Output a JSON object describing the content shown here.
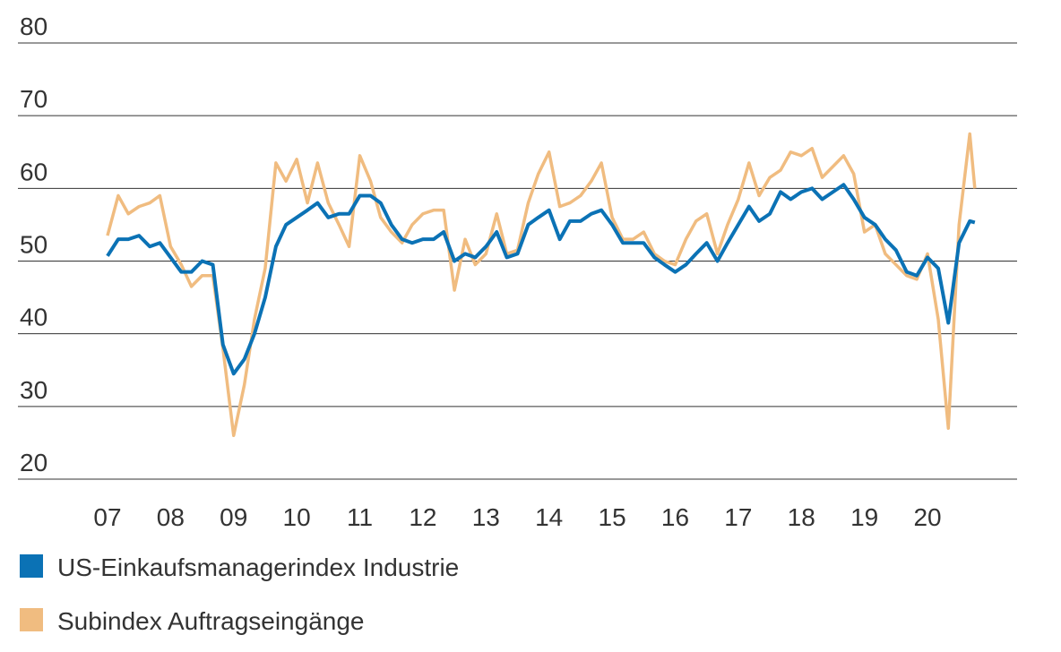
{
  "chart_data": {
    "type": "line",
    "x": [
      2007,
      2007.17,
      2007.33,
      2007.5,
      2007.67,
      2007.83,
      2008,
      2008.17,
      2008.33,
      2008.5,
      2008.67,
      2008.83,
      2009,
      2009.17,
      2009.33,
      2009.5,
      2009.67,
      2009.83,
      2010,
      2010.17,
      2010.33,
      2010.5,
      2010.67,
      2010.83,
      2011,
      2011.17,
      2011.33,
      2011.5,
      2011.67,
      2011.83,
      2012,
      2012.17,
      2012.33,
      2012.5,
      2012.67,
      2012.83,
      2013,
      2013.17,
      2013.33,
      2013.5,
      2013.67,
      2013.83,
      2014,
      2014.17,
      2014.33,
      2014.5,
      2014.67,
      2014.83,
      2015,
      2015.17,
      2015.33,
      2015.5,
      2015.67,
      2015.83,
      2016,
      2016.17,
      2016.33,
      2016.5,
      2016.67,
      2016.83,
      2017,
      2017.17,
      2017.33,
      2017.5,
      2017.67,
      2017.83,
      2018,
      2018.17,
      2018.33,
      2018.5,
      2018.67,
      2018.83,
      2019,
      2019.17,
      2019.33,
      2019.5,
      2019.67,
      2019.83,
      2020,
      2020.17,
      2020.33,
      2020.5,
      2020.67,
      2020.75
    ],
    "series": [
      {
        "name": "Subindex Auftragseingänge",
        "color": "#f0bc80",
        "values": [
          53.5,
          59,
          56.5,
          57.5,
          58,
          59,
          52,
          49.5,
          46.5,
          48,
          48,
          38,
          26,
          33,
          42,
          49,
          63.5,
          61,
          64,
          58,
          63.5,
          58,
          55,
          52,
          64.5,
          61,
          56,
          54,
          52.5,
          55,
          56.5,
          57,
          57,
          46,
          53,
          49.5,
          51,
          56.5,
          51,
          51.5,
          58,
          62,
          65,
          57.5,
          58,
          59,
          61,
          63.5,
          56,
          53,
          53,
          54,
          51,
          50,
          49.5,
          53,
          55.5,
          56.5,
          51,
          55,
          58.5,
          63.5,
          59,
          61.5,
          62.5,
          65,
          64.5,
          65.5,
          61.5,
          63,
          64.5,
          62,
          54,
          55,
          51,
          49.5,
          48,
          47.5,
          51,
          42,
          27,
          55,
          67.5,
          60
        ]
      },
      {
        "name": "US-Einkaufsmanagerindex Industrie",
        "color": "#0b72b5",
        "values": [
          50.7,
          53,
          53,
          53.5,
          52,
          52.5,
          50.5,
          48.5,
          48.5,
          50,
          49.5,
          38.5,
          34.5,
          36.5,
          40,
          45,
          52,
          55,
          56,
          57,
          58,
          56,
          56.5,
          56.5,
          59,
          59,
          58,
          55,
          53,
          52.5,
          53,
          53,
          54,
          50,
          51,
          50.5,
          52,
          54,
          50.5,
          51,
          55,
          56,
          57,
          53,
          55.5,
          55.5,
          56.5,
          57,
          55,
          52.5,
          52.5,
          52.5,
          50.5,
          49.5,
          48.5,
          49.5,
          51,
          52.5,
          50,
          52.5,
          55,
          57.5,
          55.5,
          56.5,
          59.5,
          58.5,
          59.5,
          60,
          58.5,
          59.5,
          60.5,
          58.5,
          56,
          55,
          53,
          51.5,
          48.5,
          48,
          50.5,
          49,
          41.5,
          52.5,
          55.5,
          55.3
        ]
      }
    ],
    "xlim": [
      2005.58,
      2021.42
    ],
    "xticks": [
      {
        "value": 2007,
        "label": "07"
      },
      {
        "value": 2008,
        "label": "08"
      },
      {
        "value": 2009,
        "label": "09"
      },
      {
        "value": 2010,
        "label": "10"
      },
      {
        "value": 2011,
        "label": "11"
      },
      {
        "value": 2012,
        "label": "12"
      },
      {
        "value": 2013,
        "label": "13"
      },
      {
        "value": 2014,
        "label": "14"
      },
      {
        "value": 2015,
        "label": "15"
      },
      {
        "value": 2016,
        "label": "16"
      },
      {
        "value": 2017,
        "label": "17"
      },
      {
        "value": 2018,
        "label": "18"
      },
      {
        "value": 2019,
        "label": "19"
      },
      {
        "value": 2020,
        "label": "20"
      }
    ],
    "ylim": [
      20,
      80
    ],
    "yticks": [
      20,
      30,
      40,
      50,
      60,
      70,
      80
    ],
    "grid": true
  }
}
